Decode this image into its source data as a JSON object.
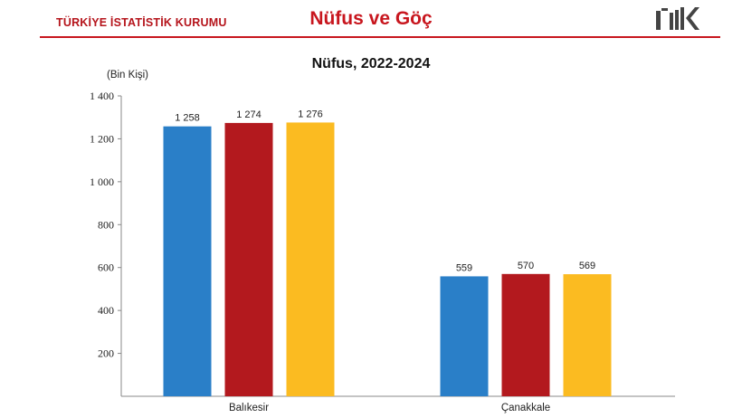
{
  "header": {
    "org_name": "TÜRKİYE İSTATİSTİK KURUMU",
    "section_title": "Nüfus ve Göç",
    "logo_text": "TÜİK",
    "accent_color": "#c8161e"
  },
  "chart_data": {
    "type": "bar",
    "title": "Nüfus, 2022-2024",
    "ylabel": "(Bin Kişi)",
    "xlabel": "",
    "ylim": [
      0,
      1400
    ],
    "yticks": [
      200,
      400,
      600,
      800,
      1000,
      1200,
      1400
    ],
    "ytick_labels": [
      "200",
      "400",
      "600",
      "800",
      "1 000",
      "1 200",
      "1 400"
    ],
    "grid": false,
    "legend": "none",
    "categories": [
      "Balıkesir",
      "Çanakkale"
    ],
    "series": [
      {
        "values": [
          1258,
          559
        ],
        "labels": [
          "1 258",
          "559"
        ],
        "color": "#2a7fc8"
      },
      {
        "values": [
          1274,
          570
        ],
        "labels": [
          "1 274",
          "570"
        ],
        "color": "#b3191e"
      },
      {
        "values": [
          1276,
          569
        ],
        "labels": [
          "1 276",
          "569"
        ],
        "color": "#fbbb21"
      }
    ]
  }
}
